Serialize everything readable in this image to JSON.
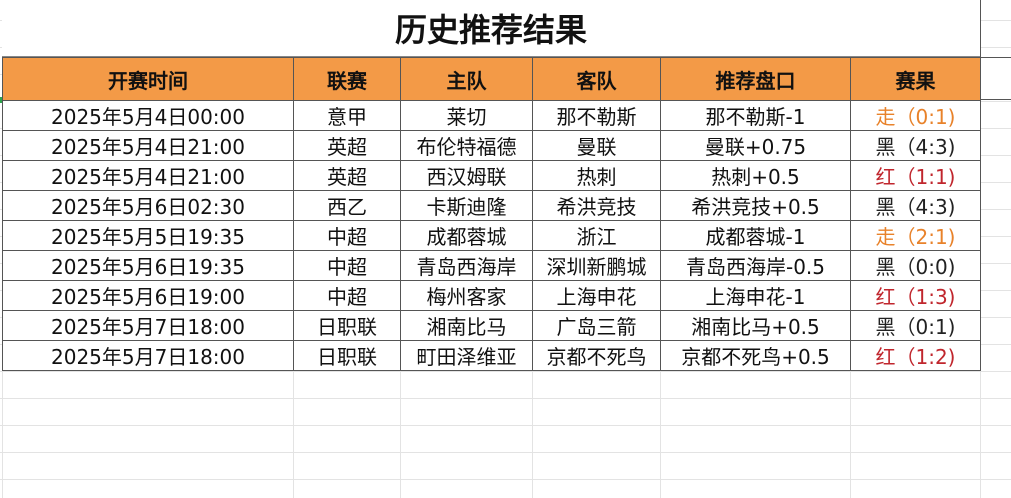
{
  "title": "历史推荐结果",
  "headers": [
    "开赛时间",
    "联赛",
    "主队",
    "客队",
    "推荐盘口",
    "赛果"
  ],
  "colors": {
    "header_bg": "#f39a47",
    "walk": "#e8822a",
    "red": "#c0262d",
    "black": "#222222"
  },
  "rows": [
    {
      "time": "2025年5月4日00:00",
      "league": "意甲",
      "home": "莱切",
      "away": "那不勒斯",
      "pick": "那不勒斯-1",
      "result": "走（0:1)",
      "status": "walk"
    },
    {
      "time": "2025年5月4日21:00",
      "league": "英超",
      "home": "布伦特福德",
      "away": "曼联",
      "pick": "曼联+0.75",
      "result": "黑（4:3)",
      "status": "black"
    },
    {
      "time": "2025年5月4日21:00",
      "league": "英超",
      "home": "西汉姆联",
      "away": "热刺",
      "pick": "热刺+0.5",
      "result": "红（1:1)",
      "status": "red"
    },
    {
      "time": "2025年5月6日02:30",
      "league": "西乙",
      "home": "卡斯迪隆",
      "away": "希洪竞技",
      "pick": "希洪竞技+0.5",
      "result": "黑（4:3)",
      "status": "black"
    },
    {
      "time": "2025年5月5日19:35",
      "league": "中超",
      "home": "成都蓉城",
      "away": "浙江",
      "pick": "成都蓉城-1",
      "result": "走（2:1)",
      "status": "walk"
    },
    {
      "time": "2025年5月6日19:35",
      "league": "中超",
      "home": "青岛西海岸",
      "away": "深圳新鹏城",
      "pick": "青岛西海岸-0.5",
      "result": "黑（0:0)",
      "status": "black"
    },
    {
      "time": "2025年5月6日19:00",
      "league": "中超",
      "home": "梅州客家",
      "away": "上海申花",
      "pick": "上海申花-1",
      "result": "红（1:3)",
      "status": "red"
    },
    {
      "time": "2025年5月7日18:00",
      "league": "日职联",
      "home": "湘南比马",
      "away": "广岛三箭",
      "pick": "湘南比马+0.5",
      "result": "黑（0:1)",
      "status": "black"
    },
    {
      "time": "2025年5月7日18:00",
      "league": "日职联",
      "home": "町田泽维亚",
      "away": "京都不死鸟",
      "pick": "京都不死鸟+0.5",
      "result": "红（1:2)",
      "status": "red"
    }
  ]
}
